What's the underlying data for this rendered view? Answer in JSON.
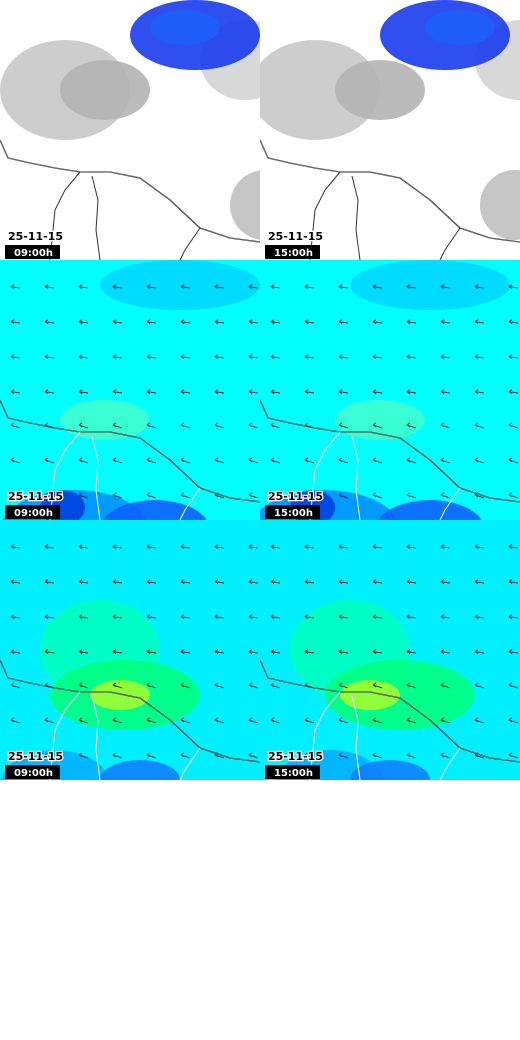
{
  "panels": [
    {
      "date": "25-11-15",
      "time": "09:00h"
    },
    {
      "date": "25-11-15",
      "time": "15:00h"
    },
    {
      "date": "25-11-15",
      "time": "09:00h"
    },
    {
      "date": "25-11-15",
      "time": "15:00h"
    },
    {
      "date": "25-11-15",
      "time": "09:00h"
    },
    {
      "date": "25-11-15",
      "time": "15:00h"
    }
  ]
}
